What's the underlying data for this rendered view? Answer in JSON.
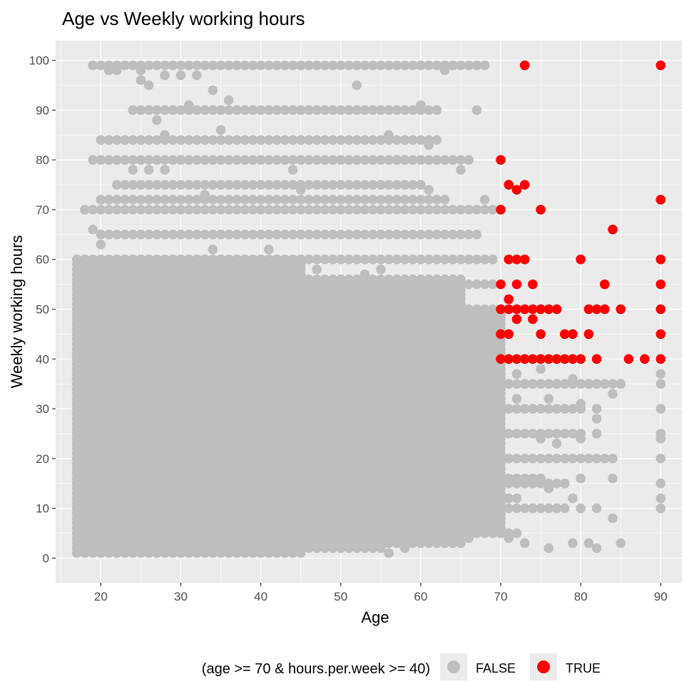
{
  "chart_data": {
    "type": "scatter",
    "title": "Age vs Weekly working hours",
    "xlabel": "Age",
    "ylabel": "Weekly working hours",
    "xlim": [
      14.35,
      92.65
    ],
    "ylim": [
      -4.95,
      103.95
    ],
    "x_ticks": [
      20,
      30,
      40,
      50,
      60,
      70,
      80,
      90
    ],
    "y_ticks": [
      0,
      10,
      20,
      30,
      40,
      50,
      60,
      70,
      80,
      90,
      100
    ],
    "grid": true,
    "legend": {
      "position": "bottom",
      "title": "(age >= 70 & hours.per.week >= 40)",
      "entries": [
        "FALSE",
        "TRUE"
      ]
    },
    "colors": {
      "FALSE": "#bebebe",
      "TRUE": "#ff0000",
      "panel": "#ebebeb",
      "grid": "#ffffff"
    },
    "series": [
      {
        "name": "FALSE",
        "dense_regions": [
          {
            "x": [
              17,
              65
            ],
            "y": [
              3,
              56
            ]
          },
          {
            "x": [
              17,
              70
            ],
            "y": [
              5,
              50
            ]
          },
          {
            "x": [
              17,
              45
            ],
            "y": [
              1,
              60
            ]
          }
        ],
        "hour_lines": [
          {
            "y": 99,
            "x": [
              19,
              68
            ]
          },
          {
            "y": 90,
            "x": [
              24,
              62
            ]
          },
          {
            "y": 84,
            "x": [
              20,
              62
            ]
          },
          {
            "y": 80,
            "x": [
              19,
              66
            ]
          },
          {
            "y": 75,
            "x": [
              22,
              60
            ]
          },
          {
            "y": 72,
            "x": [
              20,
              62
            ]
          },
          {
            "y": 70,
            "x": [
              18,
              69
            ]
          },
          {
            "y": 65,
            "x": [
              20,
              67
            ]
          },
          {
            "y": 60,
            "x": [
              18,
              69
            ]
          },
          {
            "y": 55,
            "x": [
              18,
              69
            ]
          },
          {
            "y": 45,
            "x": [
              17,
              69
            ]
          },
          {
            "y": 40,
            "x": [
              17,
              80
            ]
          },
          {
            "y": 35,
            "x": [
              17,
              85
            ]
          },
          {
            "y": 30,
            "x": [
              17,
              80
            ]
          },
          {
            "y": 25,
            "x": [
              17,
              80
            ]
          },
          {
            "y": 20,
            "x": [
              17,
              82
            ]
          },
          {
            "y": 16,
            "x": [
              17,
              75
            ]
          },
          {
            "y": 15,
            "x": [
              17,
              78
            ]
          },
          {
            "y": 12,
            "x": [
              17,
              72
            ]
          },
          {
            "y": 10,
            "x": [
              17,
              78
            ]
          },
          {
            "y": 8,
            "x": [
              17,
              70
            ]
          },
          {
            "y": 5,
            "x": [
              17,
              72
            ]
          },
          {
            "y": 4,
            "x": [
              17,
              60
            ]
          },
          {
            "y": 2,
            "x": [
              17,
              55
            ]
          }
        ],
        "points": [
          [
            19,
            99
          ],
          [
            21,
            98
          ],
          [
            22,
            98
          ],
          [
            24,
            99
          ],
          [
            25,
            98
          ],
          [
            25,
            96
          ],
          [
            26,
            95
          ],
          [
            28,
            97
          ],
          [
            29,
            99
          ],
          [
            30,
            97
          ],
          [
            32,
            97
          ],
          [
            34,
            94
          ],
          [
            45,
            99
          ],
          [
            52,
            95
          ],
          [
            60,
            99
          ],
          [
            63,
            98
          ],
          [
            64,
            99
          ],
          [
            67,
            99
          ],
          [
            24,
            90
          ],
          [
            27,
            88
          ],
          [
            29,
            90
          ],
          [
            31,
            91
          ],
          [
            36,
            92
          ],
          [
            39,
            90
          ],
          [
            44,
            90
          ],
          [
            52,
            90
          ],
          [
            60,
            91
          ],
          [
            67,
            90
          ],
          [
            21,
            84
          ],
          [
            23,
            84
          ],
          [
            25,
            84
          ],
          [
            28,
            85
          ],
          [
            35,
            86
          ],
          [
            56,
            85
          ],
          [
            58,
            84
          ],
          [
            61,
            83
          ],
          [
            24,
            78
          ],
          [
            26,
            78
          ],
          [
            28,
            78
          ],
          [
            30,
            80
          ],
          [
            44,
            78
          ],
          [
            57,
            80
          ],
          [
            58,
            80
          ],
          [
            65,
            78
          ],
          [
            18,
            70
          ],
          [
            20,
            72
          ],
          [
            33,
            73
          ],
          [
            45,
            74
          ],
          [
            55,
            75
          ],
          [
            61,
            74
          ],
          [
            63,
            72
          ],
          [
            68,
            72
          ],
          [
            19,
            66
          ],
          [
            20,
            63
          ],
          [
            27,
            58
          ],
          [
            29,
            59
          ],
          [
            34,
            62
          ],
          [
            38,
            58
          ],
          [
            41,
            62
          ],
          [
            47,
            58
          ],
          [
            53,
            57
          ],
          [
            55,
            58
          ],
          [
            66,
            60
          ],
          [
            68,
            60
          ],
          [
            17,
            48
          ],
          [
            18,
            46
          ],
          [
            17,
            40
          ],
          [
            17,
            35
          ],
          [
            18,
            32
          ],
          [
            72,
            37
          ],
          [
            75,
            38
          ],
          [
            73,
            35
          ],
          [
            77,
            35
          ],
          [
            79,
            36
          ],
          [
            81,
            35
          ],
          [
            85,
            35
          ],
          [
            90,
            37
          ],
          [
            90,
            35
          ],
          [
            84,
            33
          ],
          [
            72,
            32
          ],
          [
            74,
            30
          ],
          [
            76,
            32
          ],
          [
            78,
            30
          ],
          [
            80,
            31
          ],
          [
            82,
            30
          ],
          [
            82,
            28
          ],
          [
            90,
            30
          ],
          [
            73,
            25
          ],
          [
            75,
            24
          ],
          [
            77,
            23
          ],
          [
            80,
            24
          ],
          [
            82,
            25
          ],
          [
            90,
            25
          ],
          [
            90,
            24
          ],
          [
            90,
            20
          ],
          [
            84,
            20
          ],
          [
            83,
            20
          ],
          [
            74,
            15
          ],
          [
            76,
            14
          ],
          [
            78,
            15
          ],
          [
            80,
            16
          ],
          [
            84,
            16
          ],
          [
            90,
            15
          ],
          [
            90,
            12
          ],
          [
            90,
            10
          ],
          [
            74,
            10
          ],
          [
            77,
            10
          ],
          [
            79,
            12
          ],
          [
            80,
            10
          ],
          [
            82,
            10
          ],
          [
            84,
            8
          ],
          [
            85,
            3
          ],
          [
            82,
            2
          ],
          [
            81,
            3
          ],
          [
            79,
            3
          ],
          [
            76,
            2
          ],
          [
            73,
            3
          ],
          [
            71,
            4
          ],
          [
            66,
            4
          ],
          [
            62,
            4
          ],
          [
            58,
            2
          ],
          [
            56,
            1
          ],
          [
            50,
            2
          ],
          [
            40,
            2
          ],
          [
            33,
            3
          ],
          [
            27,
            1
          ],
          [
            22,
            1
          ],
          [
            21,
            2
          ]
        ]
      },
      {
        "name": "TRUE",
        "points": [
          [
            73,
            99
          ],
          [
            90,
            99
          ],
          [
            70,
            80
          ],
          [
            71,
            75
          ],
          [
            72,
            74
          ],
          [
            73,
            75
          ],
          [
            70,
            70
          ],
          [
            75,
            70
          ],
          [
            90,
            72
          ],
          [
            84,
            66
          ],
          [
            71,
            60
          ],
          [
            72,
            60
          ],
          [
            73,
            60
          ],
          [
            80,
            60
          ],
          [
            90,
            60
          ],
          [
            70,
            55
          ],
          [
            72,
            55
          ],
          [
            74,
            55
          ],
          [
            83,
            55
          ],
          [
            90,
            55
          ],
          [
            71,
            52
          ],
          [
            70,
            50
          ],
          [
            71,
            50
          ],
          [
            72,
            50
          ],
          [
            73,
            50
          ],
          [
            74,
            50
          ],
          [
            75,
            50
          ],
          [
            76,
            50
          ],
          [
            77,
            50
          ],
          [
            81,
            50
          ],
          [
            82,
            50
          ],
          [
            83,
            50
          ],
          [
            85,
            50
          ],
          [
            90,
            50
          ],
          [
            72,
            48
          ],
          [
            74,
            48
          ],
          [
            70,
            45
          ],
          [
            71,
            45
          ],
          [
            75,
            45
          ],
          [
            78,
            45
          ],
          [
            79,
            45
          ],
          [
            81,
            45
          ],
          [
            90,
            45
          ],
          [
            70,
            40
          ],
          [
            71,
            40
          ],
          [
            72,
            40
          ],
          [
            73,
            40
          ],
          [
            74,
            40
          ],
          [
            75,
            40
          ],
          [
            76,
            40
          ],
          [
            77,
            40
          ],
          [
            78,
            40
          ],
          [
            79,
            40
          ],
          [
            80,
            40
          ],
          [
            82,
            40
          ],
          [
            86,
            40
          ],
          [
            88,
            40
          ],
          [
            90,
            40
          ]
        ]
      }
    ]
  }
}
